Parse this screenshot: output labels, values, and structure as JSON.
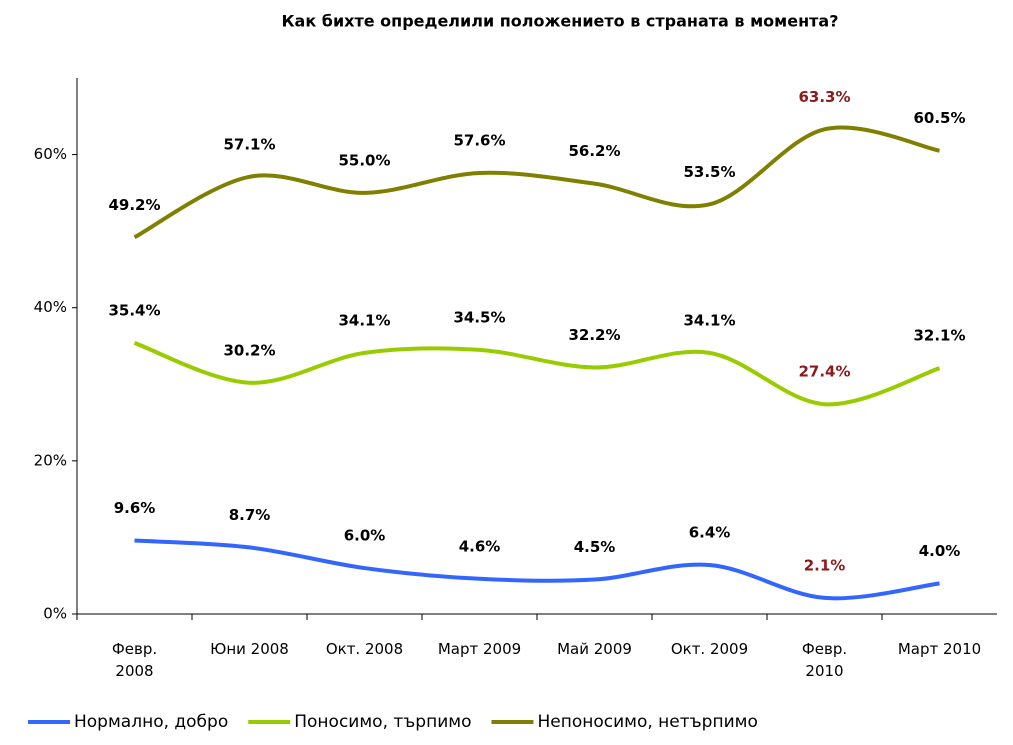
{
  "chart_data": {
    "type": "line",
    "title": "Как бихте определили положението в страната в момента?",
    "categories": [
      "Февр.\n2008",
      "Юни 2008",
      "Окт. 2008",
      "Март 2009",
      "Май 2009",
      "Окт. 2009",
      "Февр.\n2010",
      "Март 2010"
    ],
    "series": [
      {
        "name": "Нормално, добро",
        "color": "#3366ff",
        "values": [
          9.6,
          8.7,
          6.0,
          4.6,
          4.5,
          6.4,
          2.1,
          4.0
        ],
        "value_labels": [
          "9.6%",
          "8.7%",
          "6.0%",
          "4.6%",
          "4.5%",
          "6.4%",
          "2.1%",
          "4.0%"
        ]
      },
      {
        "name": "Поносимо, търпимо",
        "color": "#99cc00",
        "values": [
          35.4,
          30.2,
          34.1,
          34.5,
          32.2,
          34.1,
          27.4,
          32.1
        ],
        "value_labels": [
          "35.4%",
          "30.2%",
          "34.1%",
          "34.5%",
          "32.2%",
          "34.1%",
          "27.4%",
          "32.1%"
        ]
      },
      {
        "name": "Непоносимо, нетърпимо",
        "color": "#808000",
        "values": [
          49.2,
          57.1,
          55.0,
          57.6,
          56.2,
          53.5,
          63.3,
          60.5
        ],
        "value_labels": [
          "49.2%",
          "57.1%",
          "55.0%",
          "57.6%",
          "56.2%",
          "53.5%",
          "63.3%",
          "60.5%"
        ]
      }
    ],
    "ylim": [
      0,
      70
    ],
    "yticks": [
      {
        "value": 0,
        "label": "0%"
      },
      {
        "value": 20,
        "label": "20%"
      },
      {
        "value": 40,
        "label": "40%"
      },
      {
        "value": 60,
        "label": "60%"
      }
    ],
    "highlight_index": 6,
    "highlight_color": "#8b1a1a",
    "legend": "bottom"
  }
}
